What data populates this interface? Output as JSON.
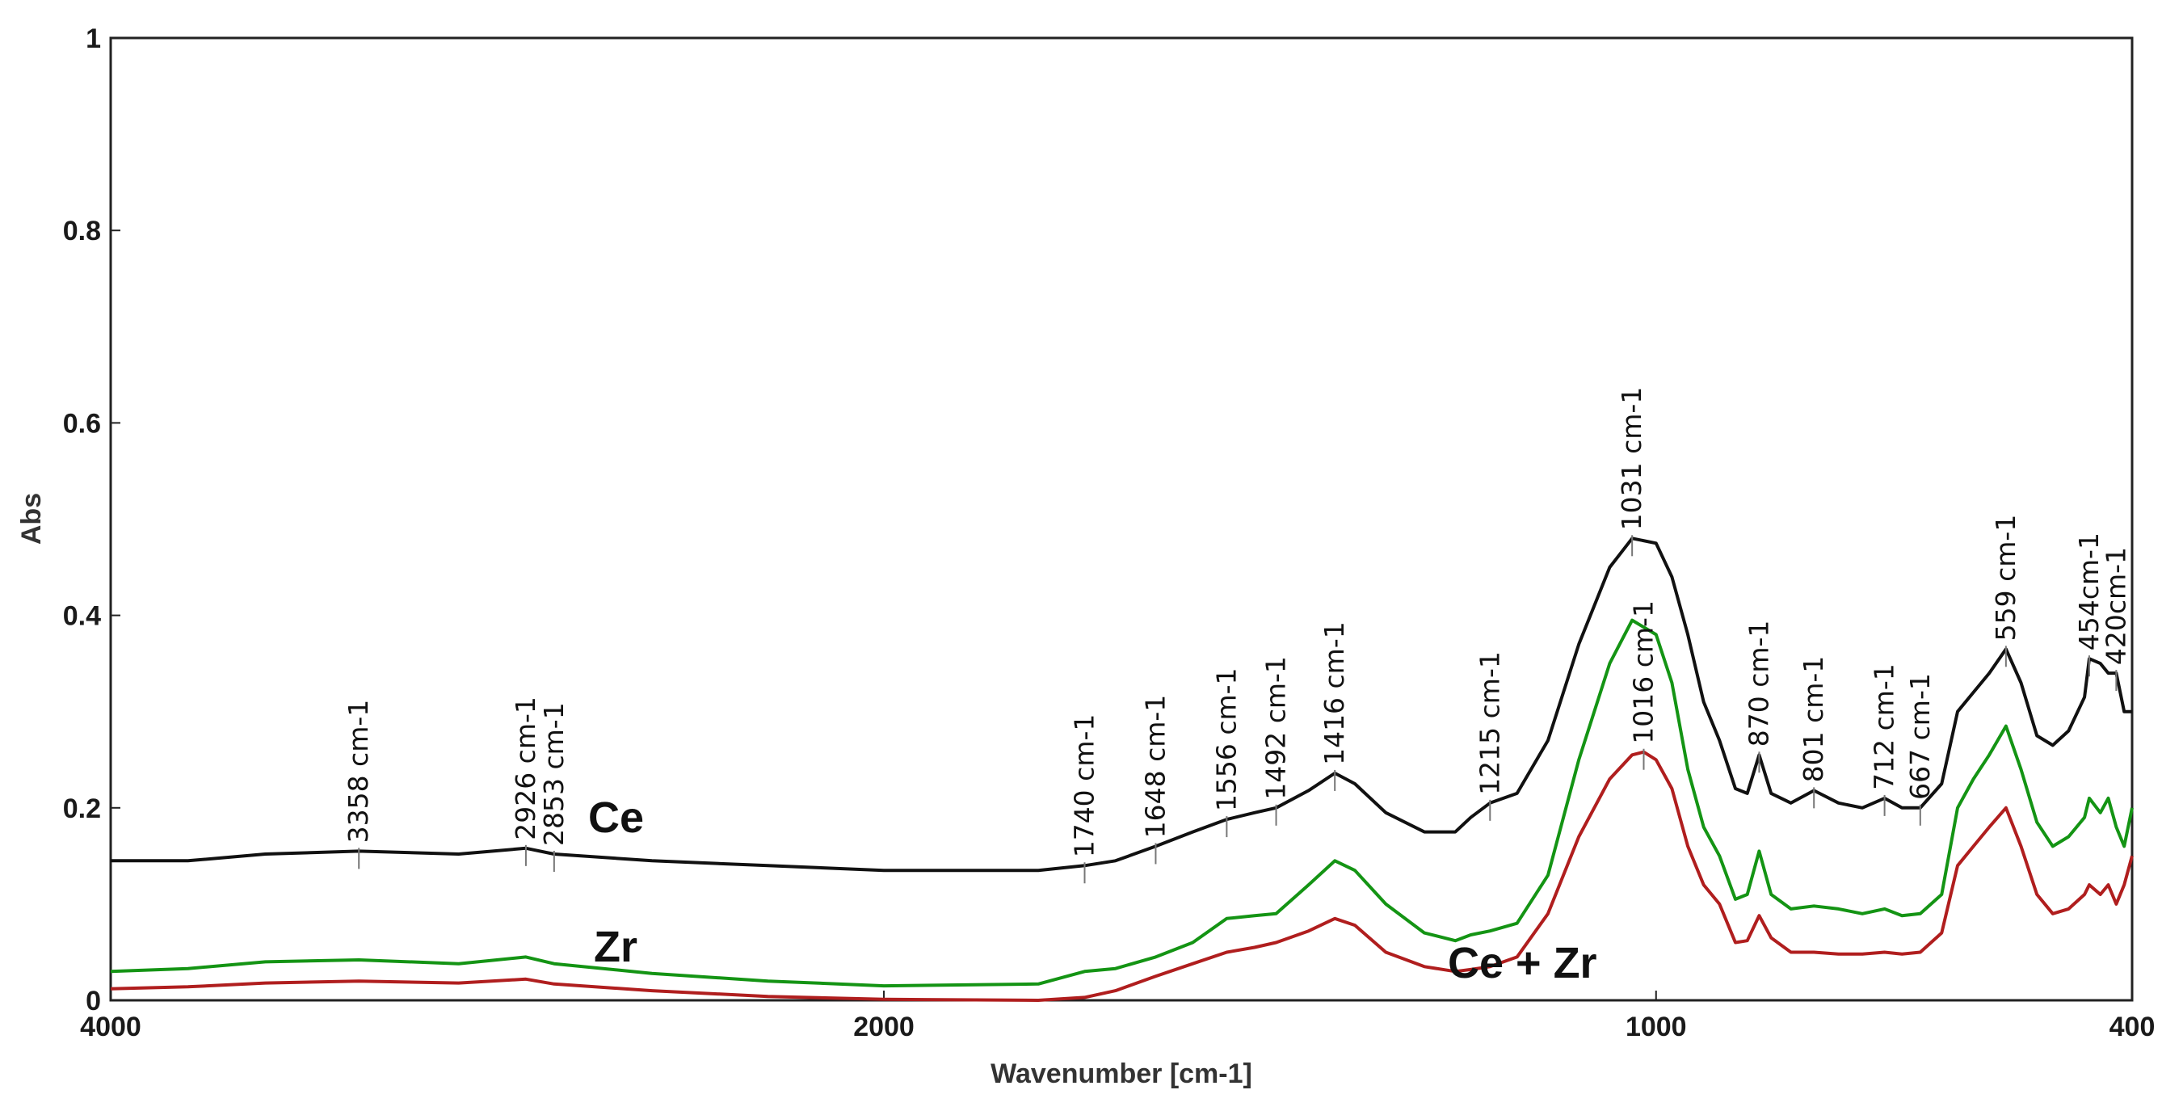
{
  "chart_data": {
    "type": "line",
    "title": "",
    "xlabel": "Wavenumber [cm-1]",
    "ylabel": "Abs",
    "xlim": [
      4000,
      400
    ],
    "ylim": [
      0,
      1
    ],
    "x_axis_reversed": true,
    "x_ticks": [
      {
        "value": 4000,
        "label": "4000"
      },
      {
        "value": 2000,
        "label": "2000"
      },
      {
        "value": 1000,
        "label": "1000"
      },
      {
        "value": 400,
        "label": "400"
      }
    ],
    "y_ticks": [
      {
        "value": 0,
        "label": "0"
      },
      {
        "value": 0.2,
        "label": "0.2"
      },
      {
        "value": 0.4,
        "label": "0.4"
      },
      {
        "value": 0.6,
        "label": "0.6"
      },
      {
        "value": 0.8,
        "label": "0.8"
      },
      {
        "value": 1,
        "label": "1"
      }
    ],
    "grid": false,
    "series": [
      {
        "name": "Ce",
        "label": "Ce",
        "color": "#111111",
        "points": [
          [
            4000,
            0.145
          ],
          [
            3800,
            0.145
          ],
          [
            3600,
            0.152
          ],
          [
            3358,
            0.155
          ],
          [
            3100,
            0.152
          ],
          [
            2926,
            0.158
          ],
          [
            2853,
            0.152
          ],
          [
            2600,
            0.145
          ],
          [
            2300,
            0.14
          ],
          [
            2000,
            0.135
          ],
          [
            1800,
            0.135
          ],
          [
            1740,
            0.14
          ],
          [
            1700,
            0.145
          ],
          [
            1648,
            0.16
          ],
          [
            1600,
            0.175
          ],
          [
            1556,
            0.188
          ],
          [
            1520,
            0.195
          ],
          [
            1492,
            0.2
          ],
          [
            1450,
            0.218
          ],
          [
            1416,
            0.236
          ],
          [
            1390,
            0.225
          ],
          [
            1350,
            0.195
          ],
          [
            1300,
            0.175
          ],
          [
            1260,
            0.175
          ],
          [
            1240,
            0.19
          ],
          [
            1215,
            0.205
          ],
          [
            1180,
            0.215
          ],
          [
            1140,
            0.27
          ],
          [
            1100,
            0.37
          ],
          [
            1060,
            0.45
          ],
          [
            1031,
            0.48
          ],
          [
            1000,
            0.475
          ],
          [
            980,
            0.44
          ],
          [
            960,
            0.38
          ],
          [
            940,
            0.31
          ],
          [
            920,
            0.27
          ],
          [
            900,
            0.22
          ],
          [
            885,
            0.215
          ],
          [
            870,
            0.255
          ],
          [
            855,
            0.215
          ],
          [
            830,
            0.205
          ],
          [
            801,
            0.218
          ],
          [
            770,
            0.205
          ],
          [
            740,
            0.2
          ],
          [
            712,
            0.21
          ],
          [
            690,
            0.2
          ],
          [
            667,
            0.2
          ],
          [
            640,
            0.225
          ],
          [
            620,
            0.3
          ],
          [
            600,
            0.32
          ],
          [
            580,
            0.34
          ],
          [
            559,
            0.365
          ],
          [
            540,
            0.33
          ],
          [
            520,
            0.275
          ],
          [
            500,
            0.265
          ],
          [
            480,
            0.28
          ],
          [
            460,
            0.315
          ],
          [
            454,
            0.355
          ],
          [
            440,
            0.35
          ],
          [
            430,
            0.34
          ],
          [
            420,
            0.34
          ],
          [
            410,
            0.3
          ],
          [
            400,
            0.3
          ]
        ]
      },
      {
        "name": "Zr",
        "label": "Zr",
        "color": "#149414",
        "points": [
          [
            4000,
            0.03
          ],
          [
            3800,
            0.033
          ],
          [
            3600,
            0.04
          ],
          [
            3358,
            0.042
          ],
          [
            3100,
            0.038
          ],
          [
            2926,
            0.045
          ],
          [
            2853,
            0.038
          ],
          [
            2600,
            0.028
          ],
          [
            2300,
            0.02
          ],
          [
            2000,
            0.015
          ],
          [
            1800,
            0.017
          ],
          [
            1740,
            0.03
          ],
          [
            1700,
            0.033
          ],
          [
            1648,
            0.045
          ],
          [
            1600,
            0.06
          ],
          [
            1556,
            0.085
          ],
          [
            1520,
            0.088
          ],
          [
            1492,
            0.09
          ],
          [
            1450,
            0.12
          ],
          [
            1416,
            0.145
          ],
          [
            1390,
            0.135
          ],
          [
            1350,
            0.1
          ],
          [
            1300,
            0.07
          ],
          [
            1260,
            0.062
          ],
          [
            1240,
            0.068
          ],
          [
            1215,
            0.072
          ],
          [
            1180,
            0.08
          ],
          [
            1140,
            0.13
          ],
          [
            1100,
            0.25
          ],
          [
            1060,
            0.35
          ],
          [
            1031,
            0.395
          ],
          [
            1000,
            0.38
          ],
          [
            980,
            0.33
          ],
          [
            960,
            0.24
          ],
          [
            940,
            0.18
          ],
          [
            920,
            0.15
          ],
          [
            900,
            0.105
          ],
          [
            885,
            0.11
          ],
          [
            870,
            0.155
          ],
          [
            855,
            0.11
          ],
          [
            830,
            0.095
          ],
          [
            801,
            0.098
          ],
          [
            770,
            0.095
          ],
          [
            740,
            0.09
          ],
          [
            712,
            0.095
          ],
          [
            690,
            0.088
          ],
          [
            667,
            0.09
          ],
          [
            640,
            0.11
          ],
          [
            620,
            0.2
          ],
          [
            600,
            0.23
          ],
          [
            580,
            0.255
          ],
          [
            559,
            0.285
          ],
          [
            540,
            0.24
          ],
          [
            520,
            0.185
          ],
          [
            500,
            0.16
          ],
          [
            480,
            0.17
          ],
          [
            460,
            0.19
          ],
          [
            454,
            0.21
          ],
          [
            440,
            0.195
          ],
          [
            430,
            0.21
          ],
          [
            420,
            0.18
          ],
          [
            410,
            0.16
          ],
          [
            400,
            0.2
          ]
        ]
      },
      {
        "name": "Ce + Zr",
        "label": "Ce + Zr",
        "color": "#b01e1e",
        "points": [
          [
            4000,
            0.012
          ],
          [
            3800,
            0.014
          ],
          [
            3600,
            0.018
          ],
          [
            3358,
            0.02
          ],
          [
            3100,
            0.018
          ],
          [
            2926,
            0.022
          ],
          [
            2853,
            0.017
          ],
          [
            2600,
            0.01
          ],
          [
            2300,
            0.004
          ],
          [
            2000,
            0.001
          ],
          [
            1800,
            0.0
          ],
          [
            1740,
            0.003
          ],
          [
            1700,
            0.01
          ],
          [
            1648,
            0.025
          ],
          [
            1600,
            0.038
          ],
          [
            1556,
            0.05
          ],
          [
            1520,
            0.055
          ],
          [
            1492,
            0.06
          ],
          [
            1450,
            0.072
          ],
          [
            1416,
            0.085
          ],
          [
            1390,
            0.078
          ],
          [
            1350,
            0.05
          ],
          [
            1300,
            0.035
          ],
          [
            1260,
            0.03
          ],
          [
            1240,
            0.032
          ],
          [
            1215,
            0.035
          ],
          [
            1180,
            0.045
          ],
          [
            1140,
            0.09
          ],
          [
            1100,
            0.17
          ],
          [
            1060,
            0.23
          ],
          [
            1031,
            0.255
          ],
          [
            1016,
            0.258
          ],
          [
            1000,
            0.25
          ],
          [
            980,
            0.22
          ],
          [
            960,
            0.16
          ],
          [
            940,
            0.12
          ],
          [
            920,
            0.1
          ],
          [
            900,
            0.06
          ],
          [
            885,
            0.062
          ],
          [
            870,
            0.088
          ],
          [
            855,
            0.065
          ],
          [
            830,
            0.05
          ],
          [
            801,
            0.05
          ],
          [
            770,
            0.048
          ],
          [
            740,
            0.048
          ],
          [
            712,
            0.05
          ],
          [
            690,
            0.048
          ],
          [
            667,
            0.05
          ],
          [
            640,
            0.07
          ],
          [
            620,
            0.14
          ],
          [
            600,
            0.16
          ],
          [
            580,
            0.18
          ],
          [
            559,
            0.2
          ],
          [
            540,
            0.16
          ],
          [
            520,
            0.11
          ],
          [
            500,
            0.09
          ],
          [
            480,
            0.095
          ],
          [
            460,
            0.11
          ],
          [
            454,
            0.12
          ],
          [
            440,
            0.11
          ],
          [
            430,
            0.12
          ],
          [
            420,
            0.1
          ],
          [
            410,
            0.12
          ],
          [
            400,
            0.15
          ]
        ]
      }
    ],
    "peak_annotations": [
      {
        "value": 3358,
        "label": "3358 cm-1",
        "y": 0.155
      },
      {
        "value": 2926,
        "label": "2926 cm-1",
        "y": 0.158
      },
      {
        "value": 2853,
        "label": "2853 cm-1",
        "y": 0.152
      },
      {
        "value": 1740,
        "label": "1740 cm-1",
        "y": 0.14
      },
      {
        "value": 1648,
        "label": "1648 cm-1",
        "y": 0.16
      },
      {
        "value": 1556,
        "label": "1556 cm-1",
        "y": 0.188
      },
      {
        "value": 1492,
        "label": "1492 cm-1",
        "y": 0.2
      },
      {
        "value": 1416,
        "label": "1416 cm-1",
        "y": 0.236
      },
      {
        "value": 1215,
        "label": "1215 cm-1",
        "y": 0.205
      },
      {
        "value": 1031,
        "label": "1031 cm-1",
        "y": 0.48
      },
      {
        "value": 1016,
        "label": "1016 cm-1",
        "y": 0.258
      },
      {
        "value": 870,
        "label": "870 cm-1",
        "y": 0.255
      },
      {
        "value": 801,
        "label": "801 cm-1",
        "y": 0.218
      },
      {
        "value": 712,
        "label": "712 cm-1",
        "y": 0.21
      },
      {
        "value": 667,
        "label": "667 cm-1",
        "y": 0.2
      },
      {
        "value": 559,
        "label": "559 cm-1",
        "y": 0.365
      },
      {
        "value": 454,
        "label": "454cm-1",
        "y": 0.355
      },
      {
        "value": 420,
        "label": "420cm-1",
        "y": 0.34
      }
    ]
  }
}
